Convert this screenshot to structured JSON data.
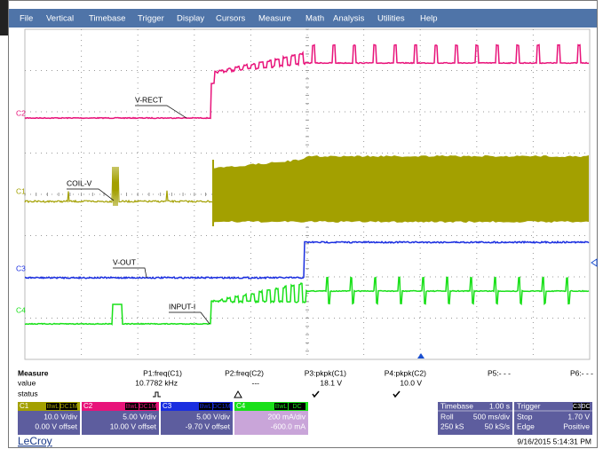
{
  "menu": [
    "File",
    "Vertical",
    "Timebase",
    "Trigger",
    "Display",
    "Cursors",
    "Measure",
    "Math",
    "Analysis",
    "Utilities",
    "Help"
  ],
  "channel_markers": [
    "C2",
    "C1",
    "C3",
    "C4"
  ],
  "trace_labels": [
    "V-RECT",
    "COIL-V",
    "V-OUT",
    "INPUT-I"
  ],
  "measure": {
    "title": "Measure",
    "row_labels": [
      "value",
      "status"
    ],
    "columns": [
      {
        "name": "P1:freq(C1)",
        "value": "10.7782 kHz"
      },
      {
        "name": "P2:freq(C2)",
        "value": "---"
      },
      {
        "name": "P3:pkpk(C1)",
        "value": "18.1 V"
      },
      {
        "name": "P4:pkpk(C2)",
        "value": "10.0 V"
      },
      {
        "name": "P5:- - -"
      },
      {
        "name": "P6:- - -"
      }
    ]
  },
  "channels": [
    {
      "name": "C1",
      "tags": [
        "BwL",
        "DC1M"
      ],
      "scale": "10.0 V/div",
      "offset": "0.00 V offset"
    },
    {
      "name": "C2",
      "tags": [
        "BwL",
        "DC1M"
      ],
      "scale": "5.00 V/div",
      "offset": "10.00 V offset"
    },
    {
      "name": "C3",
      "tags": [
        "BwL",
        "DC1M"
      ],
      "scale": "5.00 V/div",
      "offset": "-9.70 V offset"
    },
    {
      "name": "C4",
      "tags": [
        "BwL",
        "DC"
      ],
      "scale": "200 mA/div",
      "offset": "-600.0 mA"
    }
  ],
  "timebase": {
    "title": "Timebase",
    "value": "1.00 s",
    "rows": [
      [
        "Roll",
        "500 ms/div"
      ],
      [
        "250 kS",
        "50 kS/s"
      ]
    ]
  },
  "trigger": {
    "title": "Trigger",
    "tags": [
      "C3",
      "DC"
    ],
    "rows": [
      [
        "Stop",
        "1.70 V"
      ],
      [
        "Edge",
        "Positive"
      ]
    ]
  },
  "footer": {
    "brand": "LeCroy",
    "timestamp": "9/16/2015 5:14:31 PM"
  }
}
